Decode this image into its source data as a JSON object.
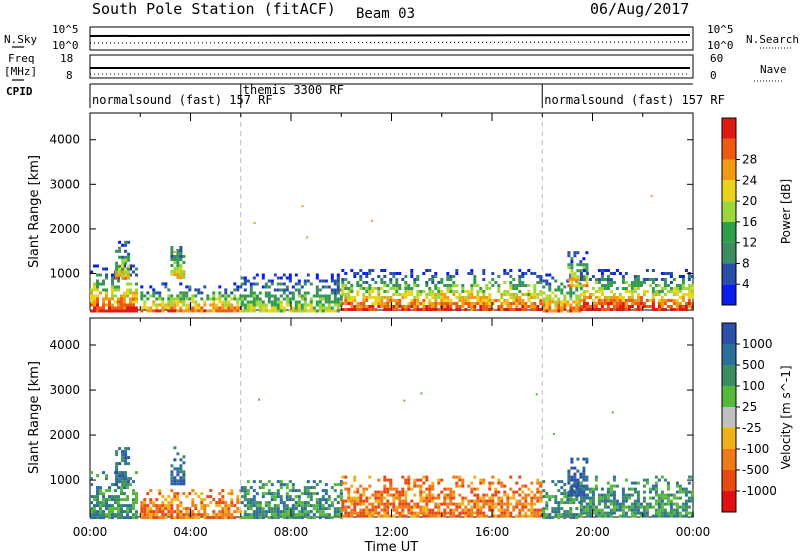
{
  "header": {
    "station": "South Pole Station (fitACF)",
    "beam": "Beam 03",
    "date": "06/Aug/2017"
  },
  "panels": {
    "nsky_label": "N.Sky",
    "nsearch_label": "N.Search",
    "noise_ticks": [
      "10^5",
      "10^0"
    ],
    "freq_label": "Freq",
    "freq_unit": "[MHz]",
    "freq_ticks": [
      "18",
      "8"
    ],
    "nave_label": "Nave",
    "nave_ticks": [
      "60",
      "0"
    ],
    "cpid_label": "CPID"
  },
  "chart_data": [
    {
      "type": "table",
      "title": "CPID",
      "segments": [
        {
          "start_hour": 0,
          "end_hour": 6,
          "label": "normalsound (fast) 157 RF"
        },
        {
          "start_hour": 6,
          "end_hour": 18,
          "label": "themis 3300 RF"
        },
        {
          "start_hour": 18,
          "end_hour": 24,
          "label": "normalsound (fast) 157 RF"
        }
      ]
    },
    {
      "type": "heatmap",
      "ylabel": "Slant Range [km]",
      "yticks": [
        "1000",
        "2000",
        "3000",
        "4000"
      ],
      "ylim": [
        180,
        4600
      ],
      "colorbar_label": "Power [dB]",
      "colorbar_ticks": [
        "4",
        "8",
        "12",
        "16",
        "20",
        "24",
        "28"
      ],
      "colorbar_range": [
        0,
        32
      ],
      "colors": [
        "#0a1ef0",
        "#2a4ea6",
        "#3c8c64",
        "#2e9e48",
        "#9ad83a",
        "#e8d41a",
        "#f29a12",
        "#ee5a12",
        "#e01a10"
      ],
      "echo_regions": [
        {
          "t0": 0.0,
          "t1": 1.8,
          "r0": 180,
          "r1": 1200,
          "peak": 28
        },
        {
          "t0": 1.0,
          "t1": 1.5,
          "r0": 900,
          "r1": 1800,
          "peak": 20
        },
        {
          "t0": 3.2,
          "t1": 3.7,
          "r0": 900,
          "r1": 1750,
          "peak": 20
        },
        {
          "t0": 2.0,
          "t1": 6.0,
          "r0": 180,
          "r1": 800,
          "peak": 24
        },
        {
          "t0": 6.0,
          "t1": 10.0,
          "r0": 180,
          "r1": 1000,
          "peak": 16
        },
        {
          "t0": 10.0,
          "t1": 18.0,
          "r0": 180,
          "r1": 1100,
          "peak": 28
        },
        {
          "t0": 18.0,
          "t1": 19.5,
          "r0": 180,
          "r1": 1000,
          "peak": 24
        },
        {
          "t0": 19.0,
          "t1": 19.8,
          "r0": 700,
          "r1": 1500,
          "peak": 24
        },
        {
          "t0": 19.5,
          "t1": 24.0,
          "r0": 180,
          "r1": 1100,
          "peak": 30
        }
      ]
    },
    {
      "type": "heatmap",
      "ylabel": "Slant Range [km]",
      "xlabel": "Time UT",
      "xticks": [
        "00:00",
        "04:00",
        "08:00",
        "12:00",
        "16:00",
        "20:00",
        "00:00"
      ],
      "yticks": [
        "1000",
        "2000",
        "3000",
        "4000"
      ],
      "ylim": [
        180,
        4600
      ],
      "xlim": [
        0,
        24
      ],
      "colorbar_label": "Velocity [m s^-1]",
      "colorbar_ticks": [
        "1000",
        "500",
        "100",
        "25",
        "-25",
        "-100",
        "-500",
        "-1000"
      ],
      "colors": [
        "#2a52a8",
        "#2e6e9a",
        "#3c8c64",
        "#56b83a",
        "#c0c0c0",
        "#f2b018",
        "#ee7a18",
        "#e84a14",
        "#e01010"
      ],
      "echo_regions": [
        {
          "t0": 0.0,
          "t1": 1.8,
          "r0": 180,
          "r1": 1200,
          "dominant": 100
        },
        {
          "t0": 1.0,
          "t1": 1.5,
          "r0": 900,
          "r1": 1800,
          "dominant": 500
        },
        {
          "t0": 3.2,
          "t1": 3.7,
          "r0": 900,
          "r1": 1750,
          "dominant": 500
        },
        {
          "t0": 2.0,
          "t1": 6.0,
          "r0": 180,
          "r1": 800,
          "dominant": -100
        },
        {
          "t0": 6.0,
          "t1": 10.0,
          "r0": 180,
          "r1": 1000,
          "dominant": 100
        },
        {
          "t0": 10.0,
          "t1": 18.0,
          "r0": 180,
          "r1": 1100,
          "dominant": -100
        },
        {
          "t0": 18.0,
          "t1": 19.5,
          "r0": 180,
          "r1": 1000,
          "dominant": 100
        },
        {
          "t0": 19.0,
          "t1": 19.8,
          "r0": 700,
          "r1": 1500,
          "dominant": 1000
        },
        {
          "t0": 19.5,
          "t1": 24.0,
          "r0": 180,
          "r1": 1100,
          "dominant": 100
        }
      ]
    }
  ]
}
